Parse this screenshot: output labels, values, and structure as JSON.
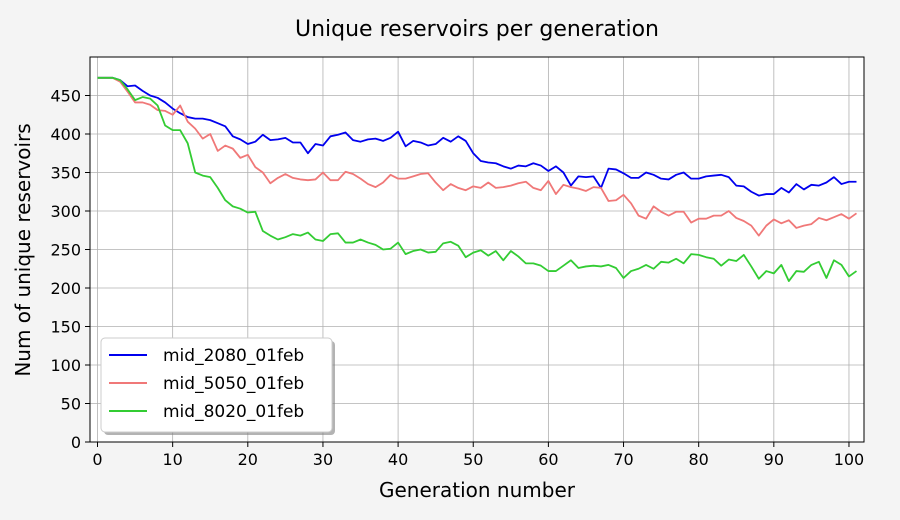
{
  "chart_data": {
    "type": "line",
    "title": "Unique reservoirs per generation",
    "xlabel": "Generation number",
    "ylabel": "Num of unique reservoirs",
    "xlim": [
      -1,
      102
    ],
    "ylim": [
      0,
      500
    ],
    "xticks": [
      0,
      10,
      20,
      30,
      40,
      50,
      60,
      70,
      80,
      90,
      100
    ],
    "yticks": [
      0,
      50,
      100,
      150,
      200,
      250,
      300,
      350,
      400,
      450
    ],
    "grid": true,
    "legend": "lower-left",
    "series": [
      {
        "name": "mid_2080_01feb",
        "color": "#0000ee",
        "values": [
          473,
          473,
          473,
          470,
          462,
          463,
          456,
          450,
          447,
          441,
          433,
          427,
          422,
          420,
          420,
          418,
          414,
          410,
          397,
          393,
          387,
          390,
          399,
          392,
          393,
          395,
          389,
          389,
          375,
          387,
          385,
          397,
          399,
          402,
          392,
          390,
          393,
          394,
          391,
          395,
          403,
          384,
          391,
          389,
          385,
          387,
          395,
          390,
          397,
          391,
          375,
          365,
          363,
          362,
          358,
          355,
          359,
          358,
          362,
          359,
          352,
          358,
          350,
          333,
          345,
          344,
          345,
          330,
          355,
          354,
          349,
          343,
          343,
          350,
          347,
          342,
          341,
          347,
          350,
          342,
          342,
          345,
          346,
          347,
          344,
          333,
          332,
          325,
          320,
          322,
          322,
          330,
          324,
          335,
          328,
          334,
          333,
          337,
          344,
          335,
          338,
          338
        ]
      },
      {
        "name": "mid_5050_01feb",
        "color": "#f07878",
        "values": [
          473,
          473,
          473,
          468,
          455,
          441,
          441,
          438,
          431,
          430,
          425,
          437,
          416,
          407,
          394,
          400,
          378,
          385,
          381,
          369,
          373,
          357,
          350,
          336,
          343,
          348,
          343,
          341,
          340,
          341,
          350,
          340,
          340,
          351,
          348,
          342,
          335,
          331,
          337,
          347,
          342,
          342,
          345,
          348,
          349,
          337,
          327,
          335,
          330,
          327,
          332,
          330,
          337,
          330,
          331,
          333,
          336,
          338,
          330,
          327,
          339,
          322,
          334,
          331,
          329,
          326,
          331,
          330,
          313,
          314,
          321,
          310,
          294,
          290,
          306,
          299,
          294,
          299,
          299,
          285,
          290,
          290,
          294,
          294,
          300,
          291,
          287,
          281,
          268,
          281,
          289,
          284,
          288,
          278,
          281,
          283,
          291,
          288,
          292,
          296,
          290,
          297
        ]
      },
      {
        "name": "mid_8020_01feb",
        "color": "#33cc33",
        "values": [
          473,
          473,
          473,
          470,
          458,
          444,
          448,
          446,
          437,
          411,
          405,
          405,
          388,
          350,
          346,
          344,
          330,
          314,
          306,
          303,
          298,
          299,
          274,
          268,
          263,
          266,
          270,
          268,
          272,
          263,
          261,
          270,
          271,
          259,
          259,
          263,
          259,
          256,
          250,
          251,
          259,
          244,
          248,
          250,
          246,
          247,
          258,
          260,
          255,
          240,
          246,
          249,
          242,
          248,
          236,
          248,
          241,
          232,
          232,
          229,
          222,
          222,
          229,
          236,
          226,
          228,
          229,
          228,
          230,
          226,
          213,
          222,
          225,
          230,
          225,
          234,
          233,
          238,
          232,
          244,
          243,
          240,
          238,
          229,
          237,
          235,
          243,
          228,
          212,
          222,
          219,
          230,
          209,
          222,
          221,
          230,
          234,
          213,
          236,
          230,
          215,
          222
        ]
      }
    ]
  }
}
